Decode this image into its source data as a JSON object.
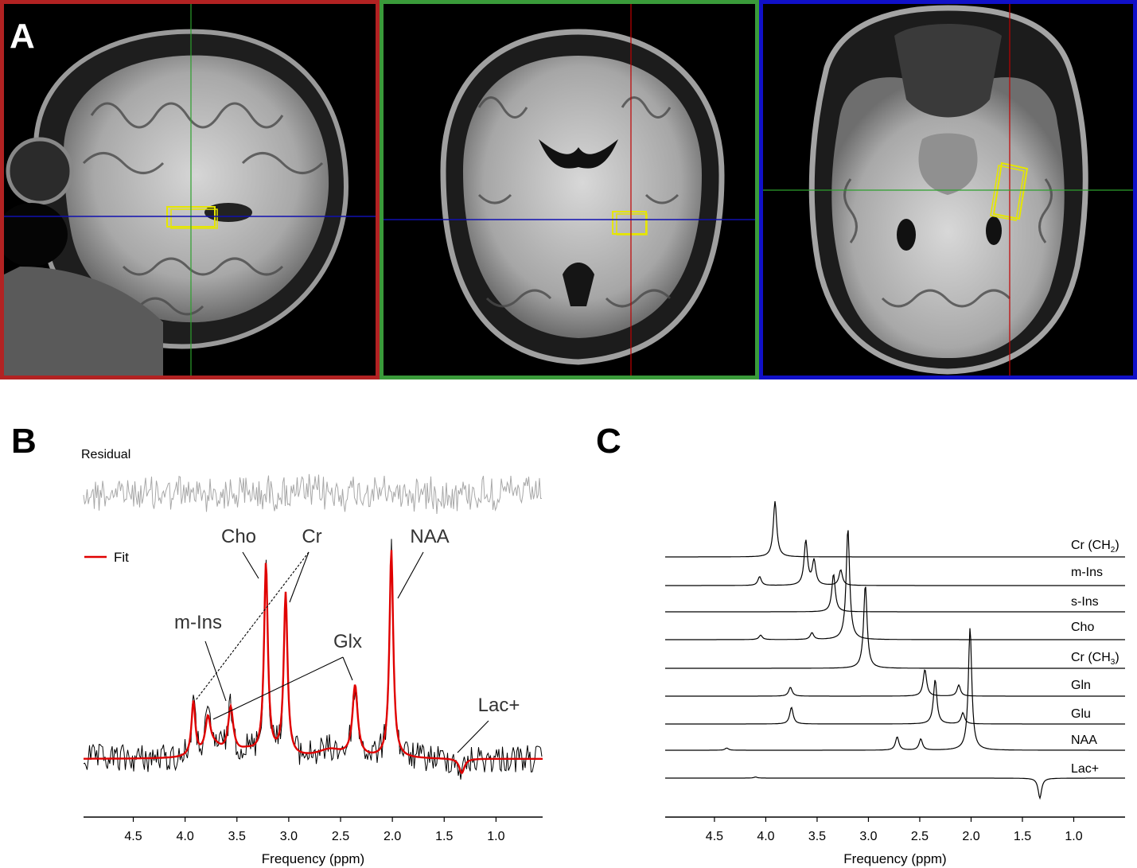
{
  "panels": {
    "a": {
      "letter": "A",
      "views": [
        "sagittal",
        "coronal",
        "axial"
      ],
      "border_colors": [
        "#b22222",
        "#3a9a3a",
        "#1010c8"
      ]
    },
    "b": {
      "letter": "B"
    },
    "c": {
      "letter": "C"
    }
  },
  "chart_data": [
    {
      "type": "line",
      "panel": "B",
      "title": "",
      "xlabel": "Frequency (ppm)",
      "ylabel": "",
      "xlim": [
        4.98,
        0.55
      ],
      "x_reversed": true,
      "xticks": [
        "4.5",
        "4.0",
        "3.5",
        "3.0",
        "2.5",
        "2.0",
        "1.5",
        "1.0"
      ],
      "xtick_values": [
        4.5,
        4.0,
        3.5,
        3.0,
        2.5,
        2.0,
        1.5,
        1.0
      ],
      "residual_label": "Residual",
      "legend": {
        "label": "Fit",
        "color": "#e00000",
        "placement": "left"
      },
      "series": [
        {
          "name": "Fit",
          "color": "#e00000"
        }
      ],
      "peaks": [
        {
          "metabolite": "NAA",
          "ppm": 2.01,
          "rel_height": 1.0
        },
        {
          "metabolite": "Cho",
          "ppm": 3.22,
          "rel_height": 0.92
        },
        {
          "metabolite": "Cr",
          "ppm": 3.03,
          "rel_height": 0.78
        },
        {
          "metabolite": "Cr",
          "ppm": 3.92,
          "rel_height": 0.26
        },
        {
          "metabolite": "m-Ins",
          "ppm": 3.56,
          "rel_height": 0.22
        },
        {
          "metabolite": "m-Ins",
          "ppm": 3.78,
          "rel_height": 0.16
        },
        {
          "metabolite": "Glx",
          "ppm": 2.36,
          "rel_height": 0.34
        },
        {
          "metabolite": "Lac+",
          "ppm": 1.33,
          "rel_height": -0.07
        }
      ],
      "annotations": [
        "Cho",
        "Cr",
        "NAA",
        "m-Ins",
        "Glx",
        "Lac+"
      ]
    },
    {
      "type": "line",
      "panel": "C",
      "title": "",
      "xlabel": "Frequency (ppm)",
      "xlim": [
        4.98,
        0.5
      ],
      "x_reversed": true,
      "xticks": [
        "4.5",
        "4.0",
        "3.5",
        "3.0",
        "2.5",
        "2.0",
        "1.5",
        "1.0"
      ],
      "xtick_values": [
        4.5,
        4.0,
        3.5,
        3.0,
        2.5,
        2.0,
        1.5,
        1.0
      ],
      "series": [
        {
          "name": "Cr (CH2)",
          "label_main": "Cr (CH",
          "label_sub": "2",
          "label_end": ")",
          "peaks": [
            {
              "ppm": 3.91,
              "rel_height": 0.5
            }
          ]
        },
        {
          "name": "m-Ins",
          "label_main": "m-Ins",
          "label_sub": "",
          "label_end": "",
          "peaks": [
            {
              "ppm": 3.61,
              "rel_height": 0.4
            },
            {
              "ppm": 3.53,
              "rel_height": 0.22
            },
            {
              "ppm": 4.06,
              "rel_height": 0.08
            },
            {
              "ppm": 3.27,
              "rel_height": 0.14
            }
          ]
        },
        {
          "name": "s-Ins",
          "label_main": "s-Ins",
          "label_sub": "",
          "label_end": "",
          "peaks": [
            {
              "ppm": 3.34,
              "rel_height": 0.34
            }
          ]
        },
        {
          "name": "Cho",
          "label_main": "Cho",
          "label_sub": "",
          "label_end": "",
          "peaks": [
            {
              "ppm": 3.2,
              "rel_height": 1.0
            },
            {
              "ppm": 3.55,
              "rel_height": 0.06
            },
            {
              "ppm": 4.05,
              "rel_height": 0.04
            }
          ]
        },
        {
          "name": "Cr (CH3)",
          "label_main": "Cr (CH",
          "label_sub": "3",
          "label_end": ")",
          "peaks": [
            {
              "ppm": 3.03,
              "rel_height": 0.75
            }
          ]
        },
        {
          "name": "Gln",
          "label_main": "Gln",
          "label_sub": "",
          "label_end": "",
          "peaks": [
            {
              "ppm": 2.45,
              "rel_height": 0.24
            },
            {
              "ppm": 3.76,
              "rel_height": 0.08
            },
            {
              "ppm": 2.12,
              "rel_height": 0.1
            }
          ]
        },
        {
          "name": "Glu",
          "label_main": "Glu",
          "label_sub": "",
          "label_end": "",
          "peaks": [
            {
              "ppm": 2.35,
              "rel_height": 0.4
            },
            {
              "ppm": 3.75,
              "rel_height": 0.15
            },
            {
              "ppm": 2.08,
              "rel_height": 0.1
            }
          ]
        },
        {
          "name": "NAA",
          "label_main": "NAA",
          "label_sub": "",
          "label_end": "",
          "peaks": [
            {
              "ppm": 2.01,
              "rel_height": 1.1
            },
            {
              "ppm": 2.72,
              "rel_height": 0.12
            },
            {
              "ppm": 2.49,
              "rel_height": 0.1
            },
            {
              "ppm": 4.38,
              "rel_height": 0.02
            }
          ]
        },
        {
          "name": "Lac+",
          "label_main": "Lac+",
          "label_sub": "",
          "label_end": "",
          "peaks": [
            {
              "ppm": 1.33,
              "rel_height": -0.18
            },
            {
              "ppm": 4.1,
              "rel_height": 0.01
            }
          ]
        }
      ]
    }
  ]
}
